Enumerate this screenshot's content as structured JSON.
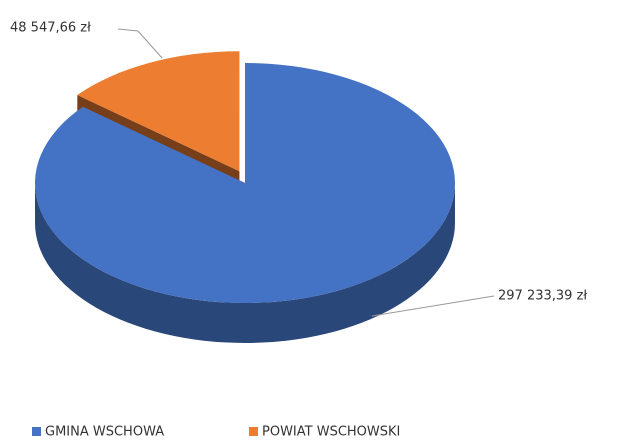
{
  "chart_data": {
    "type": "pie",
    "three_d": true,
    "categories": [
      "GMINA WSCHOWA",
      "POWIAT WSCHOWSKI"
    ],
    "values": [
      297233.39,
      48547.66
    ],
    "value_labels": [
      "297 233,39 zł",
      "48 547,66 zł"
    ],
    "colors": [
      "#4472c4",
      "#ed7d31"
    ],
    "exploded": [
      false,
      true
    ],
    "legend": "bottom"
  }
}
